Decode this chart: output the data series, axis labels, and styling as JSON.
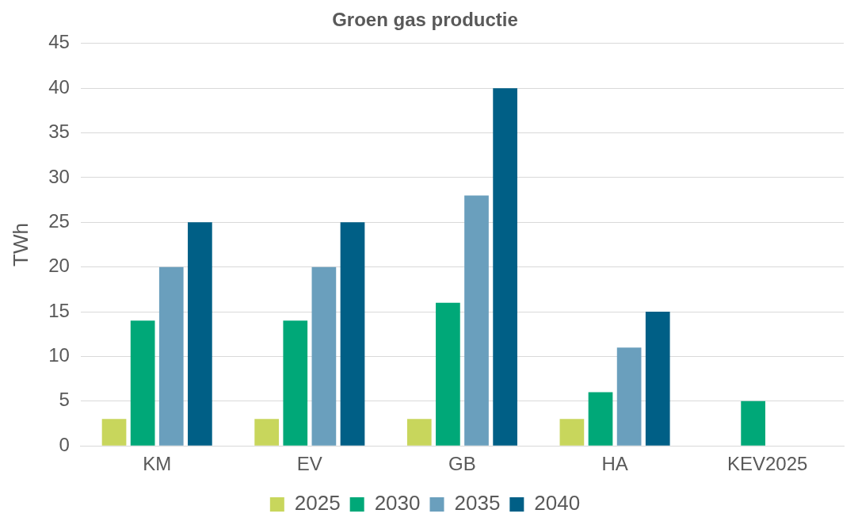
{
  "chart_data": {
    "type": "bar",
    "title": "Groen gas productie",
    "ylabel": "TWh",
    "categories": [
      "KM",
      "EV",
      "GB",
      "HA",
      "KEV2025"
    ],
    "series": [
      {
        "name": "2025",
        "color": "#c8d65c",
        "values": [
          3,
          3,
          3,
          3,
          null
        ]
      },
      {
        "name": "2030",
        "color": "#00a878",
        "values": [
          14,
          14,
          16,
          6,
          5
        ]
      },
      {
        "name": "2035",
        "color": "#6a9fbd",
        "values": [
          20,
          20,
          28,
          11,
          null
        ]
      },
      {
        "name": "2040",
        "color": "#005f86",
        "values": [
          25,
          25,
          40,
          15,
          null
        ]
      }
    ],
    "ylim": [
      0,
      45
    ],
    "yticks": [
      0,
      5,
      10,
      15,
      20,
      25,
      30,
      35,
      40,
      45
    ],
    "grid": "y",
    "legend": "bottom"
  }
}
